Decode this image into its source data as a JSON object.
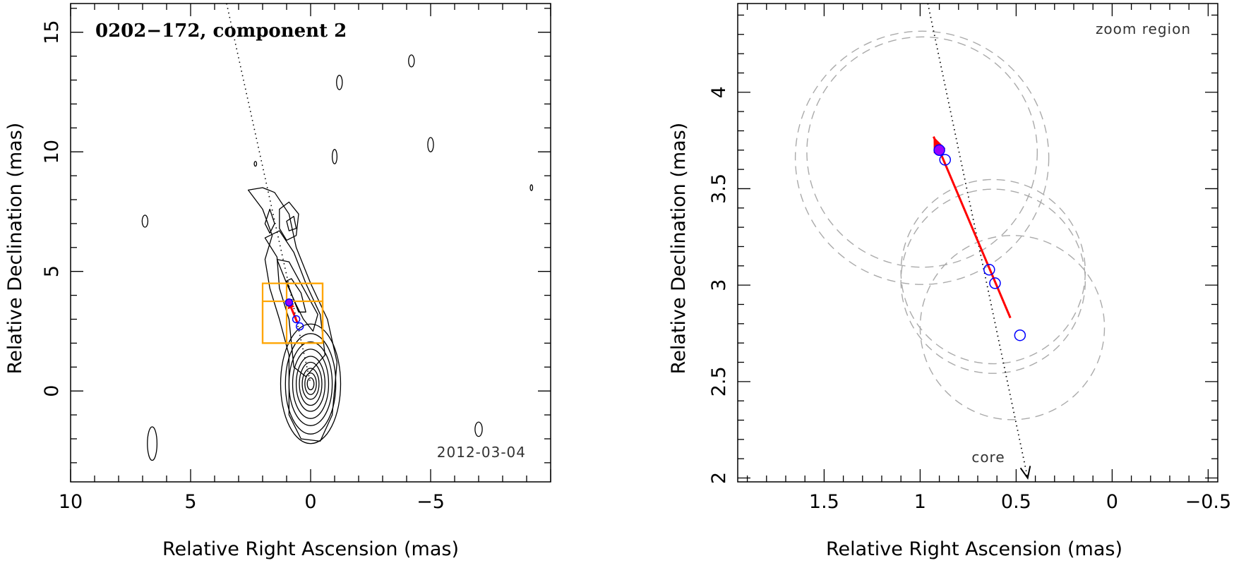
{
  "chart_data": [
    {
      "type": "contour",
      "title": "0202−172, component 2",
      "date_label": "2012-03-04",
      "xlabel": "Relative Right Ascension (mas)",
      "ylabel": "Relative Declination (mas)",
      "xlim": [
        10,
        -10
      ],
      "ylim": [
        -3.8,
        16.2
      ],
      "xticks": [
        {
          "v": 10,
          "label": "10"
        },
        {
          "v": 5,
          "label": "5"
        },
        {
          "v": 0,
          "label": "0"
        },
        {
          "v": -5,
          "label": "−5"
        }
      ],
      "yticks": [
        {
          "v": 0,
          "label": "0"
        },
        {
          "v": 5,
          "label": "5"
        },
        {
          "v": 10,
          "label": "10"
        },
        {
          "v": 15,
          "label": "15"
        }
      ],
      "core_contours": {
        "center": [
          0,
          0.3
        ],
        "sizes": [
          [
            1.25,
            2.5
          ],
          [
            1.05,
            2.1
          ],
          [
            0.9,
            1.75
          ],
          [
            0.75,
            1.45
          ],
          [
            0.6,
            1.15
          ],
          [
            0.47,
            0.9
          ],
          [
            0.35,
            0.65
          ],
          [
            0.24,
            0.45
          ],
          [
            0.14,
            0.25
          ]
        ]
      },
      "jet_axis_line": [
        [
          3.5,
          16.2
        ],
        [
          0,
          0.3
        ]
      ],
      "motion_arrow": {
        "from": [
          0.55,
          2.85
        ],
        "to": [
          0.92,
          3.75
        ],
        "color": "#ff0000"
      },
      "components": [
        {
          "x": 0.9,
          "y": 3.7,
          "filled": true
        },
        {
          "x": 0.6,
          "y": 3.0,
          "filled": false
        },
        {
          "x": 0.45,
          "y": 2.7,
          "filled": false
        }
      ],
      "zoom_boxes": [
        {
          "x0": 2.0,
          "x1": -0.5,
          "y0": 2.0,
          "y1": 4.5
        },
        {
          "x0": 2.0,
          "x1": -0.5,
          "y0": 2.0,
          "y1": 3.75
        },
        {
          "x0": 1.0,
          "x1": -0.5,
          "y0": 2.0,
          "y1": 4.5
        }
      ],
      "box_color": "#ffa500"
    },
    {
      "type": "scatter",
      "title": "",
      "region_label": "zoom region",
      "core_label": "core",
      "xlabel": "Relative Right Ascension (mas)",
      "ylabel": "Relative Declination (mas)",
      "xlim": [
        1.95,
        -0.55
      ],
      "ylim": [
        1.98,
        4.46
      ],
      "xticks": [
        {
          "v": 1.5,
          "label": "1.5"
        },
        {
          "v": 1,
          "label": "1"
        },
        {
          "v": 0.5,
          "label": "0.5"
        },
        {
          "v": 0,
          "label": "0"
        },
        {
          "v": -0.5,
          "label": "−0.5"
        }
      ],
      "yticks": [
        {
          "v": 2,
          "label": "2"
        },
        {
          "v": 2.5,
          "label": "2.5"
        },
        {
          "v": 3,
          "label": "3"
        },
        {
          "v": 3.5,
          "label": "3.5"
        },
        {
          "v": 4,
          "label": "4"
        }
      ],
      "components": [
        {
          "x": 0.9,
          "y": 3.7,
          "filled": true
        },
        {
          "x": 0.87,
          "y": 3.65,
          "filled": false
        },
        {
          "x": 0.64,
          "y": 3.08,
          "filled": false
        },
        {
          "x": 0.61,
          "y": 3.01,
          "filled": false
        },
        {
          "x": 0.48,
          "y": 2.74,
          "filled": false
        }
      ],
      "uncertainty_circles": [
        {
          "x": 0.99,
          "y": 3.69,
          "r": 0.6
        },
        {
          "x": 0.99,
          "y": 3.66,
          "r": 0.66
        },
        {
          "x": 0.62,
          "y": 3.07,
          "r": 0.48
        },
        {
          "x": 0.62,
          "y": 3.02,
          "r": 0.48
        },
        {
          "x": 0.52,
          "y": 2.78,
          "r": 0.48
        }
      ],
      "motion_arrow": {
        "from": [
          0.53,
          2.83
        ],
        "to": [
          0.93,
          3.77
        ],
        "color": "#ff0000"
      },
      "jet_axis_line": {
        "from": [
          0.96,
          4.46
        ],
        "to": [
          0.44,
          2.0
        ]
      },
      "marker_color": "#0000ff",
      "fill_color": "#9900ff",
      "circle_color": "#aaaaaa"
    }
  ]
}
